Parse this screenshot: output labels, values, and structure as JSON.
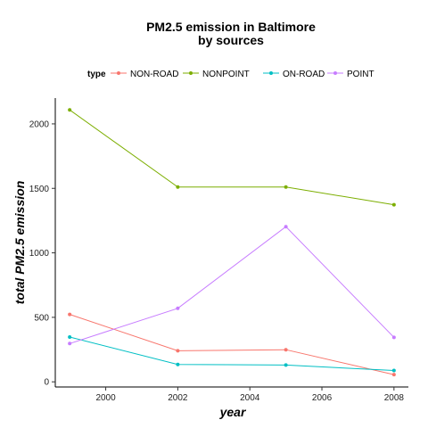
{
  "chart_data": {
    "type": "line",
    "title_line1": "PM2.5 emission in Baltimore",
    "title_line2": "by sources",
    "xlabel": "year",
    "ylabel": "total PM2.5 emission",
    "legend_title": "type",
    "legend_position": "top",
    "grid": false,
    "x": [
      1999,
      2002,
      2005,
      2008
    ],
    "xlim": [
      1998.6,
      2008.4
    ],
    "ylim": [
      -40,
      2200
    ],
    "x_ticks": [
      2000,
      2002,
      2004,
      2006,
      2008
    ],
    "y_ticks": [
      0,
      500,
      1000,
      1500,
      2000
    ],
    "series": [
      {
        "name": "NON-ROAD",
        "color": "#f8766d",
        "values": [
          523,
          241,
          249,
          56
        ]
      },
      {
        "name": "NONPOINT",
        "color": "#7cae00",
        "values": [
          2108,
          1510,
          1510,
          1373
        ]
      },
      {
        "name": "ON-ROAD",
        "color": "#00bfc4",
        "values": [
          347,
          135,
          130,
          88
        ]
      },
      {
        "name": "POINT",
        "color": "#c77cff",
        "values": [
          297,
          570,
          1203,
          345
        ]
      }
    ]
  }
}
